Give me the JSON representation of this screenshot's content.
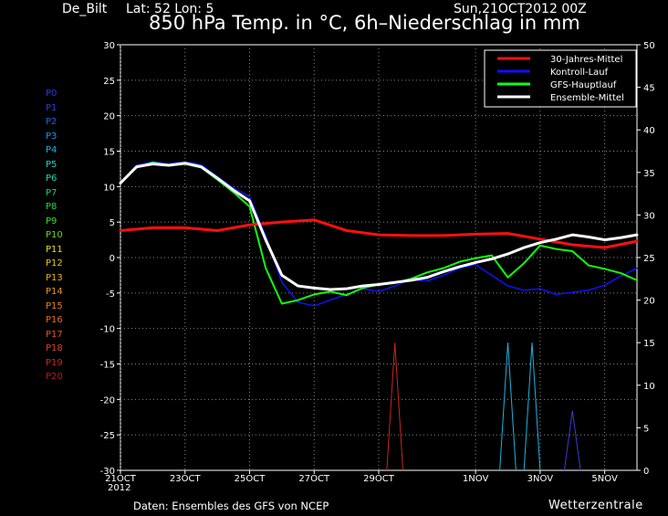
{
  "header": {
    "station": "De_Bilt",
    "latlon": "Lat: 52 Lon: 5",
    "run": "Sun,21OCT2012 00Z",
    "title": "850 hPa Temp. in °C, 6h–Niederschlag in mm"
  },
  "footer": {
    "source": "Daten: Ensembles des GFS von NCEP",
    "brand": "Wetterzentrale",
    "year": "2012"
  },
  "members": [
    {
      "label": "P0",
      "color": "#2a3ad8"
    },
    {
      "label": "P1",
      "color": "#2a3ad8"
    },
    {
      "label": "P2",
      "color": "#1f5ef0"
    },
    {
      "label": "P3",
      "color": "#1e8fe8"
    },
    {
      "label": "P4",
      "color": "#1ab4e0"
    },
    {
      "label": "P5",
      "color": "#1fd0d0"
    },
    {
      "label": "P6",
      "color": "#18d8a8"
    },
    {
      "label": "P7",
      "color": "#14d070"
    },
    {
      "label": "P8",
      "color": "#1ed83c"
    },
    {
      "label": "P9",
      "color": "#34e01c"
    },
    {
      "label": "P10",
      "color": "#6cd81a"
    },
    {
      "label": "P11",
      "color": "#d8e018"
    },
    {
      "label": "P12",
      "color": "#e8c818"
    },
    {
      "label": "P13",
      "color": "#e8b010"
    },
    {
      "label": "P14",
      "color": "#e89a10"
    },
    {
      "label": "P15",
      "color": "#e88010"
    },
    {
      "label": "P16",
      "color": "#e86a1a"
    },
    {
      "label": "P17",
      "color": "#e0501e"
    },
    {
      "label": "P18",
      "color": "#d8401e"
    },
    {
      "label": "P19",
      "color": "#c8281c"
    },
    {
      "label": "P20",
      "color": "#b81818"
    }
  ],
  "chart_data": {
    "type": "line",
    "x_ticks": [
      "21OCT",
      "23OCT",
      "25OCT",
      "27OCT",
      "29OCT",
      "1NOV",
      "3NOV",
      "5NOV"
    ],
    "x_tick_hours": [
      0,
      48,
      96,
      144,
      192,
      264,
      312,
      360
    ],
    "xlim_hours": [
      0,
      384
    ],
    "ylim_left": [
      -30,
      30
    ],
    "yticks_left": [
      30,
      25,
      20,
      15,
      10,
      5,
      0,
      -5,
      -10,
      -15,
      -20,
      -25,
      -30
    ],
    "ylim_right": [
      0,
      50
    ],
    "yticks_right": [
      50,
      45,
      40,
      35,
      30,
      25,
      20,
      15,
      10,
      5,
      0
    ],
    "grid": true,
    "legend": {
      "placement": "top-right",
      "entries": [
        {
          "name": "30-Jahres-Mittel",
          "color": "#ff1010"
        },
        {
          "name": "Kontroll-Lauf",
          "color": "#1010ff"
        },
        {
          "name": "GFS-Hauptlauf",
          "color": "#10ff10"
        },
        {
          "name": "Ensemble-Mittel",
          "color": "#ffffff"
        }
      ]
    },
    "climatology": {
      "x": [
        0,
        24,
        48,
        72,
        96,
        120,
        144,
        168,
        192,
        216,
        240,
        264,
        288,
        312,
        336,
        360,
        384
      ],
      "y": [
        3.8,
        4.2,
        4.2,
        3.8,
        4.6,
        5.0,
        5.3,
        3.8,
        3.2,
        3.1,
        3.1,
        3.3,
        3.4,
        2.6,
        1.8,
        1.4,
        2.3
      ]
    },
    "ensemble_mean": {
      "x": [
        0,
        12,
        24,
        36,
        48,
        60,
        72,
        84,
        96,
        108,
        120,
        132,
        144,
        156,
        168,
        180,
        192,
        204,
        216,
        228,
        240,
        252,
        264,
        276,
        288,
        300,
        312,
        324,
        336,
        348,
        360,
        372,
        384
      ],
      "y": [
        10.5,
        12.8,
        13.2,
        13.0,
        13.3,
        12.8,
        11.2,
        9.5,
        8.0,
        2.5,
        -2.5,
        -4.0,
        -4.3,
        -4.5,
        -4.4,
        -4.0,
        -3.8,
        -3.5,
        -3.2,
        -2.8,
        -2.0,
        -1.3,
        -0.7,
        -0.2,
        0.5,
        1.4,
        2.1,
        2.6,
        3.2,
        2.9,
        2.5,
        2.8,
        3.2
      ]
    },
    "control": {
      "x": [
        0,
        12,
        24,
        36,
        48,
        60,
        72,
        84,
        96,
        108,
        120,
        132,
        144,
        156,
        168,
        180,
        192,
        204,
        216,
        228,
        240,
        252,
        264,
        276,
        288,
        300,
        312,
        324,
        336,
        348,
        360,
        372,
        384
      ],
      "y": [
        10.5,
        13.0,
        13.5,
        13.2,
        13.5,
        13.1,
        11.4,
        9.8,
        8.6,
        3.0,
        -3.5,
        -6.3,
        -6.8,
        -6.0,
        -5.2,
        -4.4,
        -4.8,
        -4.0,
        -3.1,
        -3.3,
        -2.5,
        -1.5,
        -1.0,
        -2.5,
        -4.0,
        -4.6,
        -4.4,
        -5.2,
        -4.9,
        -4.6,
        -3.9,
        -2.6,
        -1.5
      ]
    },
    "operational": {
      "x": [
        0,
        12,
        24,
        36,
        48,
        60,
        72,
        84,
        96,
        108,
        120,
        132,
        144,
        156,
        168,
        180,
        192,
        204,
        216,
        228,
        240,
        252,
        264,
        276,
        288,
        300,
        312,
        324,
        336,
        348,
        360,
        372,
        384
      ],
      "y": [
        10.5,
        12.7,
        13.4,
        13.0,
        13.2,
        12.7,
        11.0,
        9.2,
        7.2,
        -1.5,
        -6.5,
        -6.0,
        -5.2,
        -4.8,
        -5.3,
        -4.3,
        -3.8,
        -3.6,
        -3.0,
        -2.1,
        -1.5,
        -0.6,
        -0.1,
        0.3,
        -2.8,
        -0.8,
        1.7,
        1.2,
        0.9,
        -1.1,
        -1.6,
        -2.2,
        -3.2
      ]
    },
    "precip_spikes_mm": [
      {
        "hour": 204,
        "value": 15,
        "color": "#c8281c"
      },
      {
        "hour": 288,
        "value": 15,
        "color": "#1ab4e0"
      },
      {
        "hour": 306,
        "value": 15,
        "color": "#1ab4e0"
      },
      {
        "hour": 336,
        "value": 7,
        "color": "#3a3ad8"
      }
    ]
  }
}
